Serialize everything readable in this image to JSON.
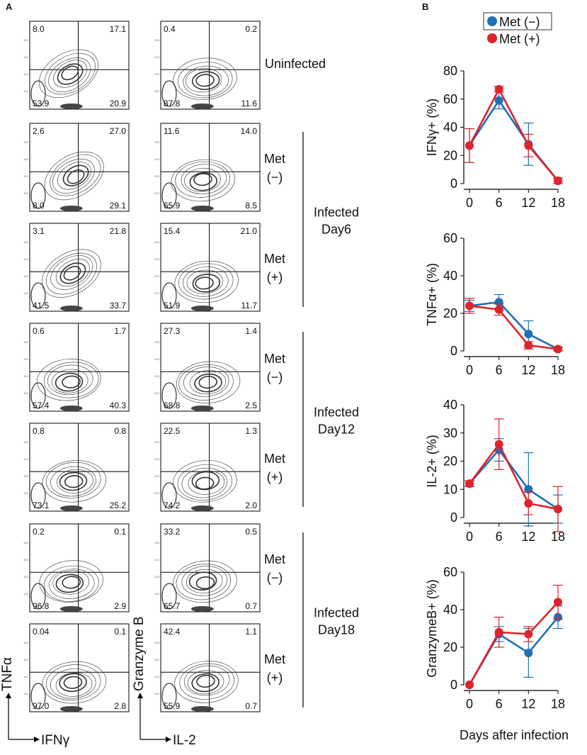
{
  "panels": {
    "a_label": "A",
    "b_label": "B"
  },
  "axis_labels": {
    "tnfa": "TNFα",
    "ifng": "IFNγ",
    "granzyme": "Granzyme B",
    "il2": "IL-2"
  },
  "flow_rows": [
    {
      "group": "Uninfected",
      "treatment": "",
      "tnf_ifng": {
        "ul": "8.0",
        "ur": "17.1",
        "ll": "53.9",
        "lr": "20.9"
      },
      "gzmb_il2": {
        "ul": "0.4",
        "ur": "0.2",
        "ll": "87.8",
        "lr": "11.6"
      }
    },
    {
      "group": "Infected Day6",
      "treatment": "Met (−)",
      "tnf_ifng": {
        "ul": "2.6",
        "ur": "27.0",
        "ll": "8.0",
        "lr": "29.1"
      },
      "gzmb_il2": {
        "ul": "11.6",
        "ur": "14.0",
        "ll": "65.9",
        "lr": "8.5"
      }
    },
    {
      "group": "Infected Day6",
      "treatment": "Met (+)",
      "tnf_ifng": {
        "ul": "3.1",
        "ur": "21.8",
        "ll": "41.5",
        "lr": "33.7"
      },
      "gzmb_il2": {
        "ul": "15.4",
        "ur": "21.0",
        "ll": "51.9",
        "lr": "11.7"
      }
    },
    {
      "group": "Infected Day12",
      "treatment": "Met (−)",
      "tnf_ifng": {
        "ul": "0.6",
        "ur": "1.7",
        "ll": "57.4",
        "lr": "40.3"
      },
      "gzmb_il2": {
        "ul": "27.3",
        "ur": "1.4",
        "ll": "68.8",
        "lr": "2.5"
      }
    },
    {
      "group": "Infected Day12",
      "treatment": "Met (+)",
      "tnf_ifng": {
        "ul": "0.8",
        "ur": "0.8",
        "ll": "73.1",
        "lr": "25.2"
      },
      "gzmb_il2": {
        "ul": "22.5",
        "ur": "1.3",
        "ll": "74.2",
        "lr": "2.0"
      }
    },
    {
      "group": "Infected Day18",
      "treatment": "Met (−)",
      "tnf_ifng": {
        "ul": "0.2",
        "ur": "0.1",
        "ll": "96.8",
        "lr": "2.9"
      },
      "gzmb_il2": {
        "ul": "33.2",
        "ur": "0.5",
        "ll": "65.7",
        "lr": "0.7"
      }
    },
    {
      "group": "Infected Day18",
      "treatment": "Met (+)",
      "tnf_ifng": {
        "ul": "0.04",
        "ur": "0.1",
        "ll": "97.0",
        "lr": "2.8"
      },
      "gzmb_il2": {
        "ul": "42.4",
        "ur": "1.1",
        "ll": "55.9",
        "lr": "0.7"
      }
    }
  ],
  "flow_labels": {
    "uninfected": "Uninfected",
    "met_word": "Met",
    "minus": "(−)",
    "plus": "(+)",
    "day6": [
      "Infected",
      "Day6"
    ],
    "day12": [
      "Infected",
      "Day12"
    ],
    "day18": [
      "Infected",
      "Day18"
    ]
  },
  "legend": [
    {
      "name": "Met (−)",
      "color": "#1f6fb5"
    },
    {
      "name": "Met (+)",
      "color": "#e0232b"
    }
  ],
  "xlabel": "Days after infection",
  "chart_data": [
    {
      "type": "line",
      "ylabel": "IFNγ+ (%)",
      "x": [
        0,
        6,
        12,
        18
      ],
      "ylim": [
        0,
        80
      ],
      "yticks": [
        0,
        20,
        40,
        60,
        80
      ],
      "series": [
        {
          "name": "Met (−)",
          "values": [
            27,
            59,
            28,
            2
          ],
          "errors": [
            12,
            6,
            15,
            2
          ]
        },
        {
          "name": "Met (+)",
          "values": [
            27,
            67,
            27,
            2
          ],
          "errors": [
            12,
            2,
            8,
            2
          ]
        }
      ]
    },
    {
      "type": "line",
      "ylabel": "TNFα+ (%)",
      "x": [
        0,
        6,
        12,
        18
      ],
      "ylim": [
        0,
        60
      ],
      "yticks": [
        0,
        20,
        40,
        60
      ],
      "series": [
        {
          "name": "Met (−)",
          "values": [
            24,
            26,
            9,
            1
          ],
          "errors": [
            3,
            4,
            7,
            1
          ]
        },
        {
          "name": "Met (+)",
          "values": [
            24,
            22,
            3,
            1
          ],
          "errors": [
            4,
            3,
            2,
            1
          ]
        }
      ]
    },
    {
      "type": "line",
      "ylabel": "IL-2+ (%)",
      "x": [
        0,
        6,
        12,
        18
      ],
      "ylim": [
        0,
        40
      ],
      "yticks": [
        0,
        10,
        20,
        30,
        40
      ],
      "series": [
        {
          "name": "Met (−)",
          "values": [
            12,
            24,
            10,
            3
          ],
          "errors": [
            1,
            4,
            13,
            5
          ]
        },
        {
          "name": "Met (+)",
          "values": [
            12,
            26,
            5,
            3
          ],
          "errors": [
            1,
            9,
            4,
            8
          ]
        }
      ]
    },
    {
      "type": "line",
      "ylabel": "GranzymeB+ (%)",
      "x": [
        0,
        6,
        12,
        18
      ],
      "ylim": [
        0,
        60
      ],
      "yticks": [
        0,
        20,
        40,
        60
      ],
      "series": [
        {
          "name": "Met (−)",
          "values": [
            0,
            27,
            17,
            36
          ],
          "errors": [
            0,
            4,
            13,
            6
          ]
        },
        {
          "name": "Met (+)",
          "values": [
            0,
            28,
            27,
            44
          ],
          "errors": [
            0,
            8,
            4,
            9
          ]
        }
      ]
    }
  ]
}
